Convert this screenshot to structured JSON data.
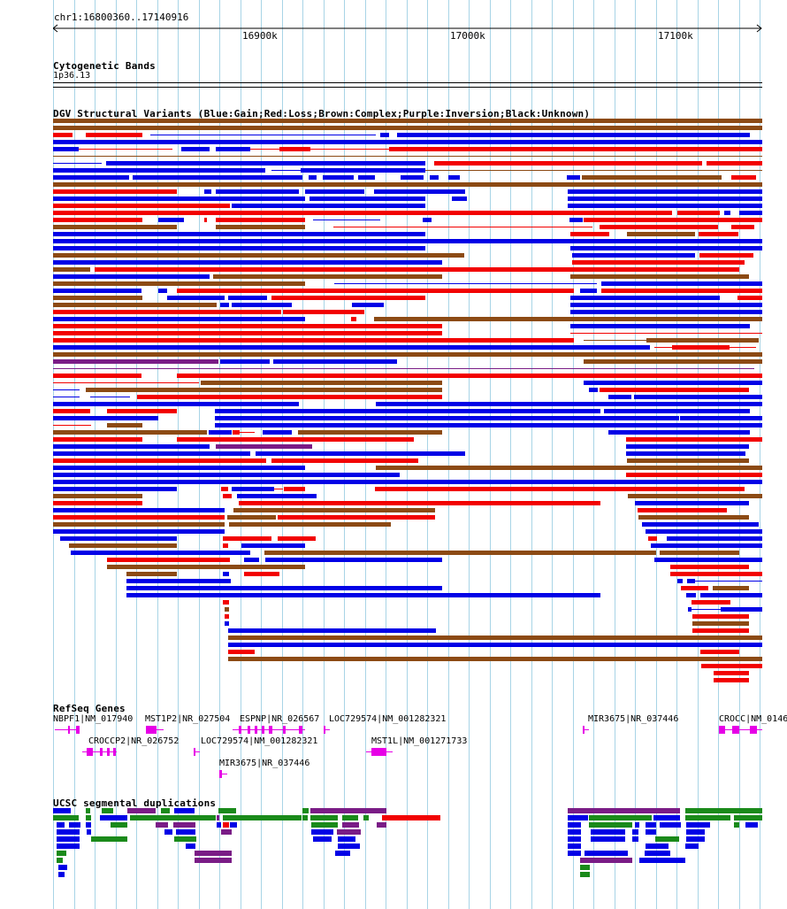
{
  "region": {
    "label": "chr1:16800360..17140916"
  },
  "ruler": {
    "ticks": [
      "16900k",
      "17000k",
      "17100k"
    ]
  },
  "cytoband": {
    "title": "Cytogenetic Bands",
    "band": "1p36.13"
  },
  "dgv": {
    "title": "DGV Structural Variants (Blue:Gain;Red:Loss;Brown:Complex;Purple:Inversion;Black:Unknown)"
  },
  "refseq": {
    "title": "RefSeq Genes",
    "genes": [
      "NBPF1|NM_017940",
      "MST1P2|NR_027504",
      "ESPNP|NR_026567",
      "LOC729574|NM_001282321",
      "MIR3675|NR_037446",
      "CROCC|NM_0146",
      "CROCCP2|NR_026752",
      "LOC729574|NM_001282321",
      "MST1L|NM_001271733",
      "MIR3675|NR_037446"
    ]
  },
  "segdup": {
    "title": "UCSC segmental duplications"
  },
  "colors": {
    "gain": "#0000e6",
    "loss": "#f20000",
    "complex": "#8c4a14",
    "inversion": "#7a1c86",
    "gene": "#e600e6",
    "seg_green": "#1a8a1a",
    "seg_purple": "#7a1c86",
    "seg_blue": "#0000e6",
    "grid": "#a8d4e6"
  }
}
